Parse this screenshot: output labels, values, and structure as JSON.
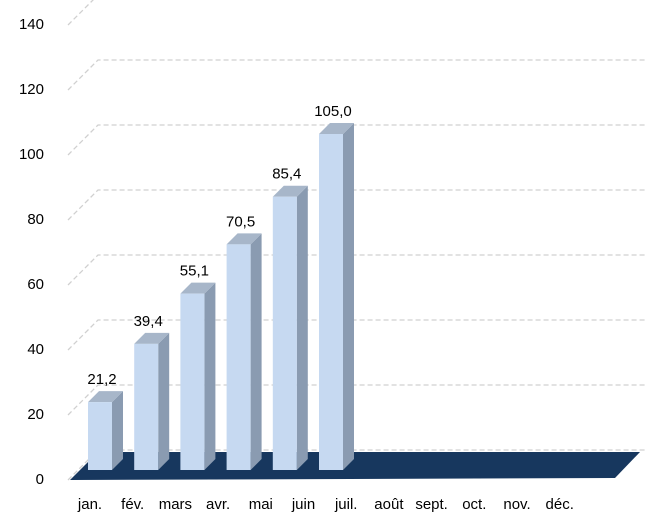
{
  "chart_data": {
    "type": "bar3d",
    "categories": [
      "jan.",
      "fév.",
      "mars",
      "avr.",
      "mai",
      "juin",
      "juil.",
      "août",
      "sept.",
      "oct.",
      "nov.",
      "déc."
    ],
    "values": [
      21.2,
      39.4,
      55.1,
      70.5,
      85.4,
      105.0,
      null,
      null,
      null,
      null,
      null,
      null
    ],
    "value_labels": [
      "21,2",
      "39,4",
      "55,1",
      "70,5",
      "85,4",
      "105,0",
      null,
      null,
      null,
      null,
      null,
      null
    ],
    "color": "#c6d9f1",
    "floor_color": "#17375e",
    "ylim": [
      0,
      140
    ],
    "yticks": [
      0,
      20,
      40,
      60,
      80,
      100,
      120,
      140
    ],
    "grid": true
  }
}
